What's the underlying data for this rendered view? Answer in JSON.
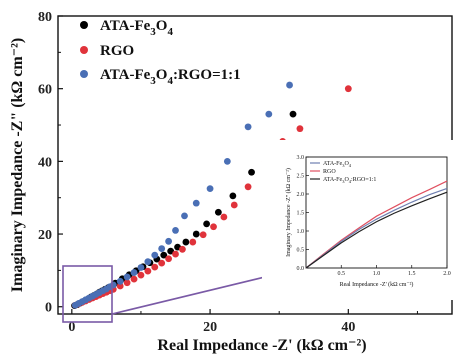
{
  "chart_data": {
    "type": "scatter",
    "xlabel": "Real Impedance -Z' (kΩ cm⁻²)",
    "ylabel": "Imaginary Impedance -Z\" (kΩ cm⁻²)",
    "xlim": [
      -2,
      55
    ],
    "ylim": [
      -2,
      80
    ],
    "x_ticks": [
      0,
      20,
      40
    ],
    "y_ticks": [
      0,
      20,
      40,
      60,
      80
    ],
    "legend_position": "top-left",
    "series": [
      {
        "name": "ATA-Fe3O4",
        "name_parts": [
          "ATA-Fe",
          "3",
          "O",
          "4",
          ""
        ],
        "color": "#000000",
        "x": [
          0.4,
          0.8,
          1.2,
          1.6,
          2.0,
          2.4,
          2.8,
          3.2,
          3.6,
          4.0,
          4.4,
          4.8,
          5.3,
          6.3,
          7.3,
          8.3,
          9.3,
          10.3,
          11.3,
          12.3,
          13.3,
          14.3,
          15.3,
          16.5,
          18.0,
          19.5,
          21.2,
          23.3,
          26.0,
          29.0,
          32.0
        ],
        "y": [
          0.3,
          0.6,
          1.0,
          1.4,
          1.8,
          2.2,
          2.7,
          3.1,
          3.5,
          4.0,
          4.4,
          4.8,
          5.3,
          6.5,
          7.7,
          8.8,
          9.9,
          11.0,
          12.1,
          13.1,
          14.2,
          15.3,
          16.4,
          17.8,
          20.0,
          22.8,
          26.0,
          30.5,
          37.0,
          44.5,
          53.0
        ]
      },
      {
        "name": "RGO",
        "name_parts": [
          "RGO",
          "",
          "",
          "",
          ""
        ],
        "color": "#e0333b",
        "x": [
          0.5,
          1.0,
          1.5,
          2.0,
          2.5,
          3.0,
          3.5,
          4.0,
          4.5,
          5.0,
          5.5,
          6.0,
          7.0,
          8.0,
          9.0,
          10.0,
          11.0,
          12.0,
          13.0,
          14.0,
          15.0,
          16.0,
          17.5,
          19.0,
          20.5,
          22.0,
          23.5,
          25.5,
          28.0,
          30.5,
          33.0,
          40.0
        ],
        "y": [
          0.4,
          0.8,
          1.2,
          1.6,
          2.0,
          2.4,
          2.8,
          3.2,
          3.6,
          4.0,
          4.4,
          4.8,
          5.7,
          6.6,
          7.6,
          8.7,
          9.8,
          10.9,
          12.0,
          13.2,
          14.5,
          15.8,
          17.8,
          19.8,
          22.0,
          24.7,
          28.0,
          33.0,
          40.0,
          45.5,
          49.0,
          60.0
        ]
      },
      {
        "name": "ATA-Fe3O4:RGO=1:1",
        "name_parts": [
          "ATA-Fe",
          "3",
          "O",
          "4",
          ":RGO=1:1"
        ],
        "color": "#4a6fb5",
        "x": [
          0.5,
          1.0,
          1.5,
          2.0,
          2.5,
          3.0,
          3.5,
          4.0,
          4.5,
          5.0,
          5.5,
          6.0,
          7.0,
          8.0,
          9.0,
          10.0,
          11.0,
          12.0,
          13.0,
          14.0,
          15.0,
          16.3,
          18.0,
          20.0,
          22.5,
          25.5,
          28.5,
          31.5
        ],
        "y": [
          0.4,
          0.9,
          1.4,
          1.9,
          2.4,
          2.9,
          3.4,
          3.9,
          4.4,
          4.9,
          5.5,
          6.0,
          7.0,
          8.2,
          9.4,
          10.8,
          12.4,
          14.2,
          16.0,
          18.0,
          21.0,
          25.0,
          28.5,
          32.5,
          40.0,
          49.5,
          53.0,
          61.0
        ]
      }
    ],
    "inset": {
      "xlabel": "Real Impedance -Z' (kΩ cm⁻²)",
      "ylabel": "Imaginary Impedance -Z\" (kΩ cm⁻²)",
      "xlim": [
        0,
        2.0
      ],
      "ylim": [
        0,
        3.0
      ],
      "x_ticks": [
        "0.5",
        "1.0",
        "1.5",
        "2.0"
      ],
      "y_ticks": [
        "0.0",
        "0.5",
        "1.0",
        "1.5",
        "2.0",
        "2.5",
        "3.0"
      ],
      "legend": [
        {
          "name_parts": [
            "ATA-Fe",
            "3",
            "O",
            "4",
            ""
          ],
          "color": "#6f7fb0"
        },
        {
          "name_parts": [
            "RGO",
            "",
            "",
            "",
            ""
          ],
          "color": "#e05060"
        },
        {
          "name_parts": [
            "ATA-Fe",
            "3",
            "O",
            "4",
            ":RGO=1:1"
          ],
          "color": "#222222"
        }
      ],
      "curves": [
        {
          "color": "#e05060",
          "x": [
            0.0,
            0.25,
            0.5,
            0.75,
            1.0,
            1.25,
            1.5,
            1.75,
            2.0
          ],
          "y": [
            0.0,
            0.38,
            0.75,
            1.08,
            1.4,
            1.65,
            1.9,
            2.12,
            2.35
          ]
        },
        {
          "color": "#6f7fb0",
          "x": [
            0.0,
            0.25,
            0.5,
            0.75,
            1.0,
            1.25,
            1.5,
            1.75,
            2.0
          ],
          "y": [
            0.0,
            0.36,
            0.72,
            1.04,
            1.32,
            1.56,
            1.78,
            1.98,
            2.15
          ]
        },
        {
          "color": "#222222",
          "x": [
            0.0,
            0.25,
            0.5,
            0.75,
            1.0,
            1.25,
            1.5,
            1.75,
            2.0
          ],
          "y": [
            0.0,
            0.34,
            0.68,
            0.98,
            1.25,
            1.48,
            1.68,
            1.87,
            2.05
          ]
        }
      ]
    }
  }
}
